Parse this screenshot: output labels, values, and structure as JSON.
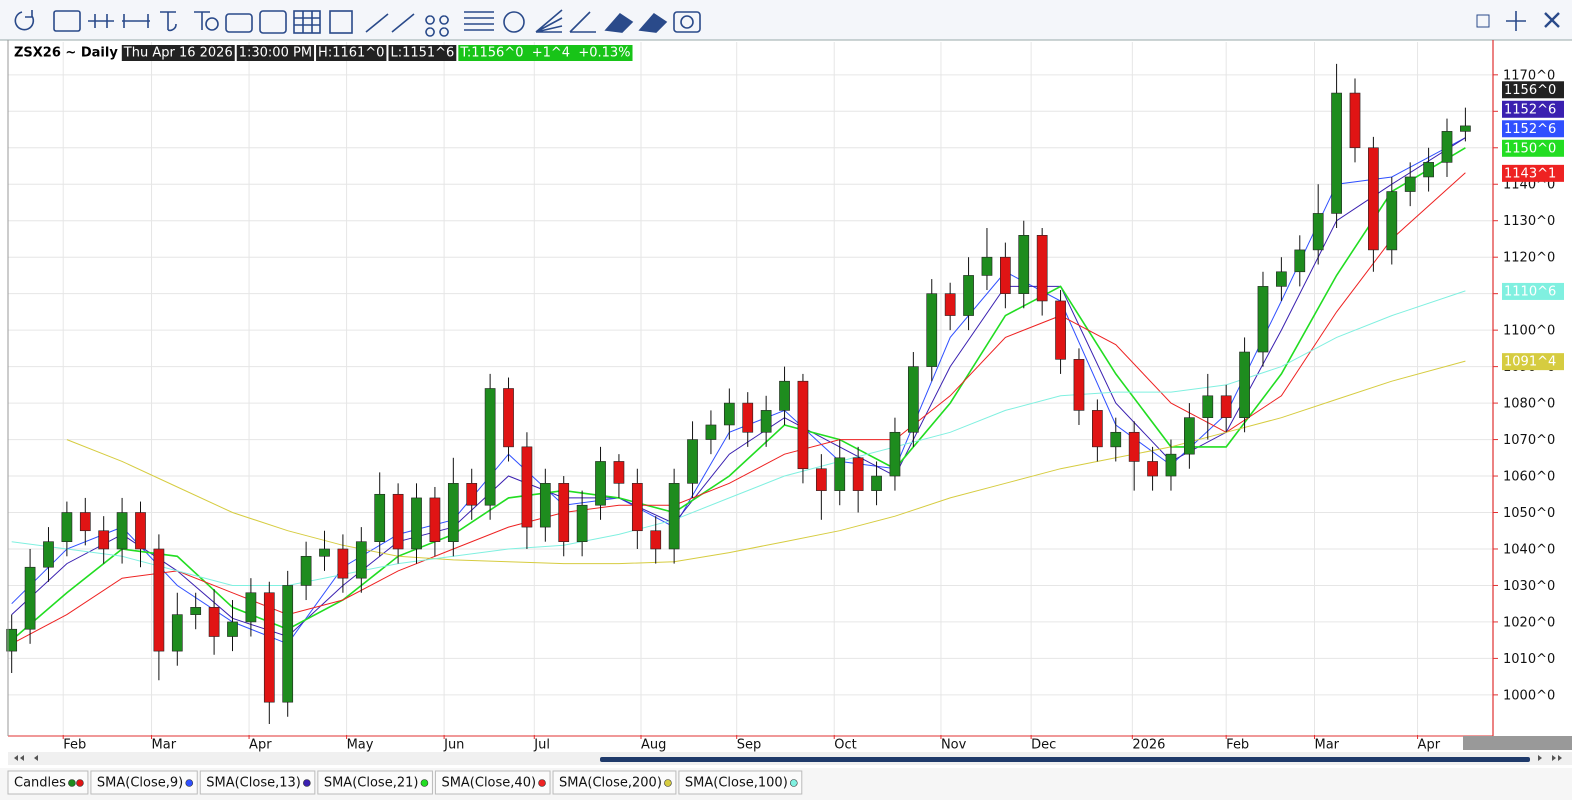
{
  "chart_data": {
    "type": "candlestick",
    "title": "ZSX26 ~ Daily",
    "info": {
      "date": "Thu Apr 16 2026",
      "time": "1:30:00 PM",
      "high": "H:1161^0",
      "low": "L:1151^6",
      "trade": "T:1156^0  +1^4  +0.13%"
    },
    "name": "Candles",
    "up_color": "#1e8c1e",
    "down_color": "#e01414",
    "last_label": "1156^0",
    "x": [
      0,
      1,
      2,
      3,
      4,
      5,
      6,
      7,
      8,
      9,
      10,
      11,
      12,
      13,
      14,
      15,
      16,
      17,
      18,
      19,
      20,
      21,
      22,
      23,
      24,
      25,
      26,
      27,
      28,
      29,
      30,
      31,
      32,
      33,
      34,
      35,
      36,
      37,
      38,
      39,
      40,
      41,
      42,
      43,
      44,
      45,
      46,
      47,
      48,
      49,
      50,
      51,
      52,
      53,
      54,
      55,
      56,
      57,
      58,
      59,
      60,
      61,
      62,
      63,
      64,
      65,
      66,
      67,
      68,
      69,
      70,
      71,
      72,
      73,
      74,
      75,
      76,
      77,
      78,
      79
    ],
    "open": [
      1012,
      1018,
      1035,
      1042,
      1050,
      1045,
      1040,
      1050,
      1040,
      1012,
      1022,
      1024,
      1016,
      1020,
      1028,
      998,
      1030,
      1038,
      1040,
      1032,
      1042,
      1055,
      1040,
      1054,
      1042,
      1058,
      1052,
      1084,
      1068,
      1046,
      1058,
      1042,
      1052,
      1064,
      1058,
      1045,
      1040,
      1058,
      1070,
      1074,
      1080,
      1072,
      1078,
      1086,
      1062,
      1056,
      1065,
      1056,
      1060,
      1072,
      1090,
      1110,
      1104,
      1115,
      1120,
      1110,
      1126,
      1108,
      1092,
      1078,
      1068,
      1072,
      1064,
      1060,
      1066,
      1076,
      1082,
      1076,
      1094,
      1112,
      1116,
      1122,
      1132,
      1165,
      1150,
      1122,
      1138,
      1142,
      1146,
      1154.5
    ],
    "high": [
      1022,
      1040,
      1046,
      1053,
      1054,
      1049,
      1054,
      1053,
      1044,
      1028,
      1028,
      1029,
      1026,
      1032,
      1031,
      1034,
      1042,
      1045,
      1044,
      1046,
      1061,
      1058,
      1058,
      1057,
      1065,
      1062,
      1088,
      1087,
      1072,
      1062,
      1060,
      1056,
      1068,
      1066,
      1062,
      1049,
      1062,
      1075,
      1078,
      1084,
      1083,
      1082,
      1090,
      1088,
      1066,
      1070,
      1068,
      1064,
      1076,
      1094,
      1114,
      1113,
      1120,
      1128,
      1124,
      1130,
      1128,
      1111,
      1095,
      1081,
      1076,
      1075,
      1068,
      1070,
      1080,
      1088,
      1085,
      1098,
      1116,
      1120,
      1126,
      1140,
      1173,
      1169,
      1153,
      1142,
      1146,
      1150,
      1158,
      1161
    ],
    "low": [
      1006,
      1014,
      1031,
      1038,
      1041,
      1036,
      1036,
      1035,
      1004,
      1008,
      1018,
      1011,
      1012,
      1016,
      992,
      994,
      1026,
      1034,
      1028,
      1028,
      1038,
      1036,
      1036,
      1038,
      1038,
      1048,
      1048,
      1064,
      1040,
      1042,
      1038,
      1038,
      1048,
      1054,
      1040,
      1036,
      1036,
      1054,
      1066,
      1070,
      1068,
      1068,
      1074,
      1058,
      1048,
      1052,
      1050,
      1052,
      1056,
      1068,
      1086,
      1100,
      1100,
      1111,
      1106,
      1106,
      1104,
      1088,
      1074,
      1064,
      1064,
      1056,
      1056,
      1056,
      1062,
      1070,
      1072,
      1072,
      1090,
      1108,
      1112,
      1118,
      1128,
      1146,
      1116,
      1118,
      1134,
      1138,
      1142,
      1151.75
    ],
    "close": [
      1018,
      1035,
      1042,
      1050,
      1045,
      1040,
      1050,
      1040,
      1012,
      1022,
      1024,
      1016,
      1020,
      1028,
      998,
      1030,
      1038,
      1040,
      1032,
      1042,
      1055,
      1040,
      1054,
      1042,
      1058,
      1052,
      1084,
      1068,
      1046,
      1058,
      1042,
      1052,
      1064,
      1058,
      1045,
      1040,
      1058,
      1070,
      1074,
      1080,
      1072,
      1078,
      1086,
      1062,
      1056,
      1065,
      1056,
      1060,
      1072,
      1090,
      1110,
      1104,
      1115,
      1120,
      1110,
      1126,
      1108,
      1092,
      1078,
      1068,
      1072,
      1064,
      1060,
      1066,
      1076,
      1082,
      1076,
      1094,
      1112,
      1116,
      1122,
      1132,
      1165,
      1150,
      1122,
      1138,
      1142,
      1146,
      1154.5,
      1156
    ],
    "series": [
      {
        "name": "SMA(Close,9)",
        "color": "#3050ff",
        "last_label": "1152^6",
        "x": [
          0,
          3,
          6,
          9,
          12,
          15,
          18,
          21,
          24,
          27,
          30,
          33,
          36,
          39,
          42,
          45,
          48,
          51,
          54,
          57,
          60,
          63,
          66,
          69,
          72,
          75,
          79
        ],
        "values": [
          1025,
          1040,
          1046,
          1030,
          1020,
          1014,
          1035,
          1044,
          1048,
          1066,
          1052,
          1054,
          1046,
          1072,
          1078,
          1064,
          1062,
          1098,
          1116,
          1108,
          1074,
          1063,
          1077,
          1108,
          1140,
          1142,
          1152.75
        ]
      },
      {
        "name": "SMA(Close,13)",
        "color": "#3a20b0",
        "last_label": "1152^6",
        "x": [
          0,
          3,
          6,
          9,
          12,
          15,
          18,
          21,
          24,
          27,
          30,
          33,
          36,
          39,
          42,
          45,
          48,
          51,
          54,
          57,
          60,
          63,
          66,
          69,
          72,
          75,
          79
        ],
        "values": [
          1022,
          1036,
          1044,
          1034,
          1021,
          1016,
          1030,
          1042,
          1046,
          1060,
          1054,
          1054,
          1047,
          1066,
          1076,
          1068,
          1060,
          1090,
          1112,
          1112,
          1080,
          1064,
          1072,
          1100,
          1130,
          1140,
          1152.75
        ]
      },
      {
        "name": "SMA(Close,21)",
        "color": "#22dd22",
        "last_label": "1150^0",
        "x": [
          0,
          3,
          6,
          9,
          12,
          15,
          18,
          21,
          24,
          27,
          30,
          33,
          36,
          39,
          42,
          45,
          48,
          51,
          54,
          57,
          60,
          63,
          66,
          69,
          72,
          75,
          79
        ],
        "values": [
          1015,
          1028,
          1040,
          1038,
          1024,
          1018,
          1026,
          1038,
          1044,
          1054,
          1056,
          1054,
          1050,
          1060,
          1074,
          1070,
          1062,
          1080,
          1104,
          1112,
          1088,
          1068,
          1068,
          1088,
          1115,
          1138,
          1150
        ]
      },
      {
        "name": "SMA(Close,40)",
        "color": "#ee2222",
        "last_label": "1143^1",
        "x": [
          0,
          3,
          6,
          9,
          12,
          15,
          18,
          21,
          24,
          27,
          30,
          33,
          36,
          39,
          42,
          45,
          48,
          51,
          54,
          57,
          60,
          63,
          66,
          69,
          72,
          75,
          79
        ],
        "values": [
          1014,
          1022,
          1032,
          1034,
          1028,
          1022,
          1026,
          1034,
          1040,
          1046,
          1050,
          1052,
          1052,
          1058,
          1066,
          1070,
          1070,
          1082,
          1098,
          1104,
          1096,
          1080,
          1072,
          1082,
          1105,
          1125,
          1143.125
        ]
      },
      {
        "name": "SMA(Close,200)",
        "color": "#d6cc40",
        "last_label": "1091^4",
        "x": [
          3,
          6,
          9,
          12,
          15,
          18,
          21,
          24,
          27,
          30,
          33,
          36,
          39,
          42,
          45,
          48,
          51,
          54,
          57,
          60,
          63,
          66,
          69,
          72,
          75,
          79
        ],
        "values": [
          1070,
          1064,
          1057,
          1050,
          1045,
          1041,
          1038,
          1037,
          1036.5,
          1036,
          1036,
          1036.5,
          1039,
          1042,
          1045,
          1049,
          1054,
          1058,
          1062,
          1065,
          1068,
          1072,
          1076,
          1081,
          1086,
          1091.5
        ]
      },
      {
        "name": "SMA(Close,100)",
        "color": "#80f0e0",
        "last_label": "1110^6",
        "x": [
          0,
          3,
          6,
          9,
          12,
          15,
          18,
          21,
          24,
          27,
          30,
          33,
          36,
          39,
          42,
          45,
          48,
          51,
          54,
          57,
          60,
          63,
          66,
          69,
          72,
          75,
          79
        ],
        "values": [
          1042,
          1040,
          1038,
          1034,
          1030,
          1030,
          1033,
          1036,
          1038,
          1040,
          1041,
          1044,
          1048,
          1054,
          1060,
          1064,
          1068,
          1072,
          1078,
          1082,
          1083,
          1083,
          1085,
          1090,
          1098,
          1104,
          1110.75
        ]
      }
    ],
    "xlim": [
      -0.2,
      80.5
    ],
    "xticks": [
      {
        "value": 2.8,
        "label": "Feb"
      },
      {
        "value": 7.6,
        "label": "Mar"
      },
      {
        "value": 12.9,
        "label": "Apr"
      },
      {
        "value": 18.2,
        "label": "May"
      },
      {
        "value": 23.5,
        "label": "Jun"
      },
      {
        "value": 28.4,
        "label": "Jul"
      },
      {
        "value": 34.2,
        "label": "Aug"
      },
      {
        "value": 39.4,
        "label": "Sep"
      },
      {
        "value": 44.7,
        "label": "Oct"
      },
      {
        "value": 50.5,
        "label": "Nov"
      },
      {
        "value": 55.4,
        "label": "Dec"
      },
      {
        "value": 60.9,
        "label": "2026"
      },
      {
        "value": 66,
        "label": "Feb"
      },
      {
        "value": 70.8,
        "label": "Mar"
      },
      {
        "value": 76.4,
        "label": "Apr"
      }
    ],
    "ylim": [
      989,
      1179
    ],
    "yticks": [
      {
        "value": 1000,
        "label": "1000^0"
      },
      {
        "value": 1010,
        "label": "1010^0"
      },
      {
        "value": 1020,
        "label": "1020^0"
      },
      {
        "value": 1030,
        "label": "1030^0"
      },
      {
        "value": 1040,
        "label": "1040^0"
      },
      {
        "value": 1050,
        "label": "1050^0"
      },
      {
        "value": 1060,
        "label": "1060^0"
      },
      {
        "value": 1070,
        "label": "1070^0"
      },
      {
        "value": 1080,
        "label": "1080^0"
      },
      {
        "value": 1090,
        "label": "1090^0"
      },
      {
        "value": 1100,
        "label": "1100^0"
      },
      {
        "value": 1110,
        "label": "1110^0"
      },
      {
        "value": 1120,
        "label": "1120^0"
      },
      {
        "value": 1130,
        "label": "1130^0"
      },
      {
        "value": 1140,
        "label": "1140^0"
      },
      {
        "value": 1150,
        "label": "1150^0"
      },
      {
        "value": 1160,
        "label": "1160^0"
      },
      {
        "value": 1170,
        "label": "1170^0"
      }
    ],
    "grid": true
  }
}
